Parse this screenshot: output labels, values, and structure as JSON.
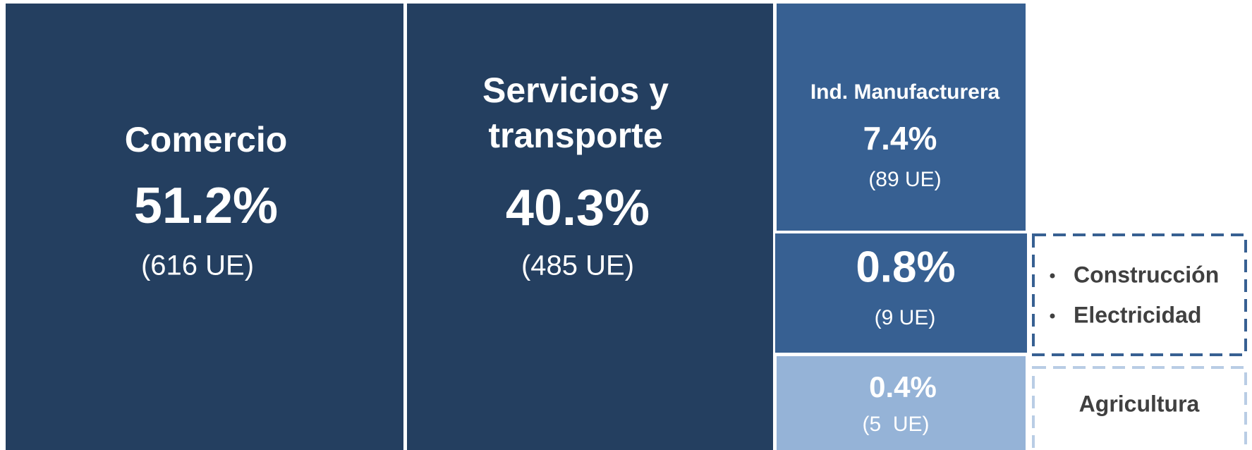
{
  "blocks": [
    {
      "label": [
        "Comercio"
      ],
      "share": "51.2%",
      "units": "(616 UE)"
    },
    {
      "label": [
        "Servicios y",
        "transporte"
      ],
      "share": "40.3%",
      "units": "(485 UE)"
    },
    {
      "label": [
        "Ind. Manufacturera"
      ],
      "share": "7.4%",
      "units": "(89 UE)"
    },
    {
      "share": "0.8%",
      "units": "(9 UE)"
    },
    {
      "share": "0.4%",
      "units": "(5  UE)"
    }
  ],
  "notes": [
    {
      "items": [
        "Construcción",
        "Electricidad"
      ]
    },
    {
      "label": "Agricultura"
    }
  ]
}
